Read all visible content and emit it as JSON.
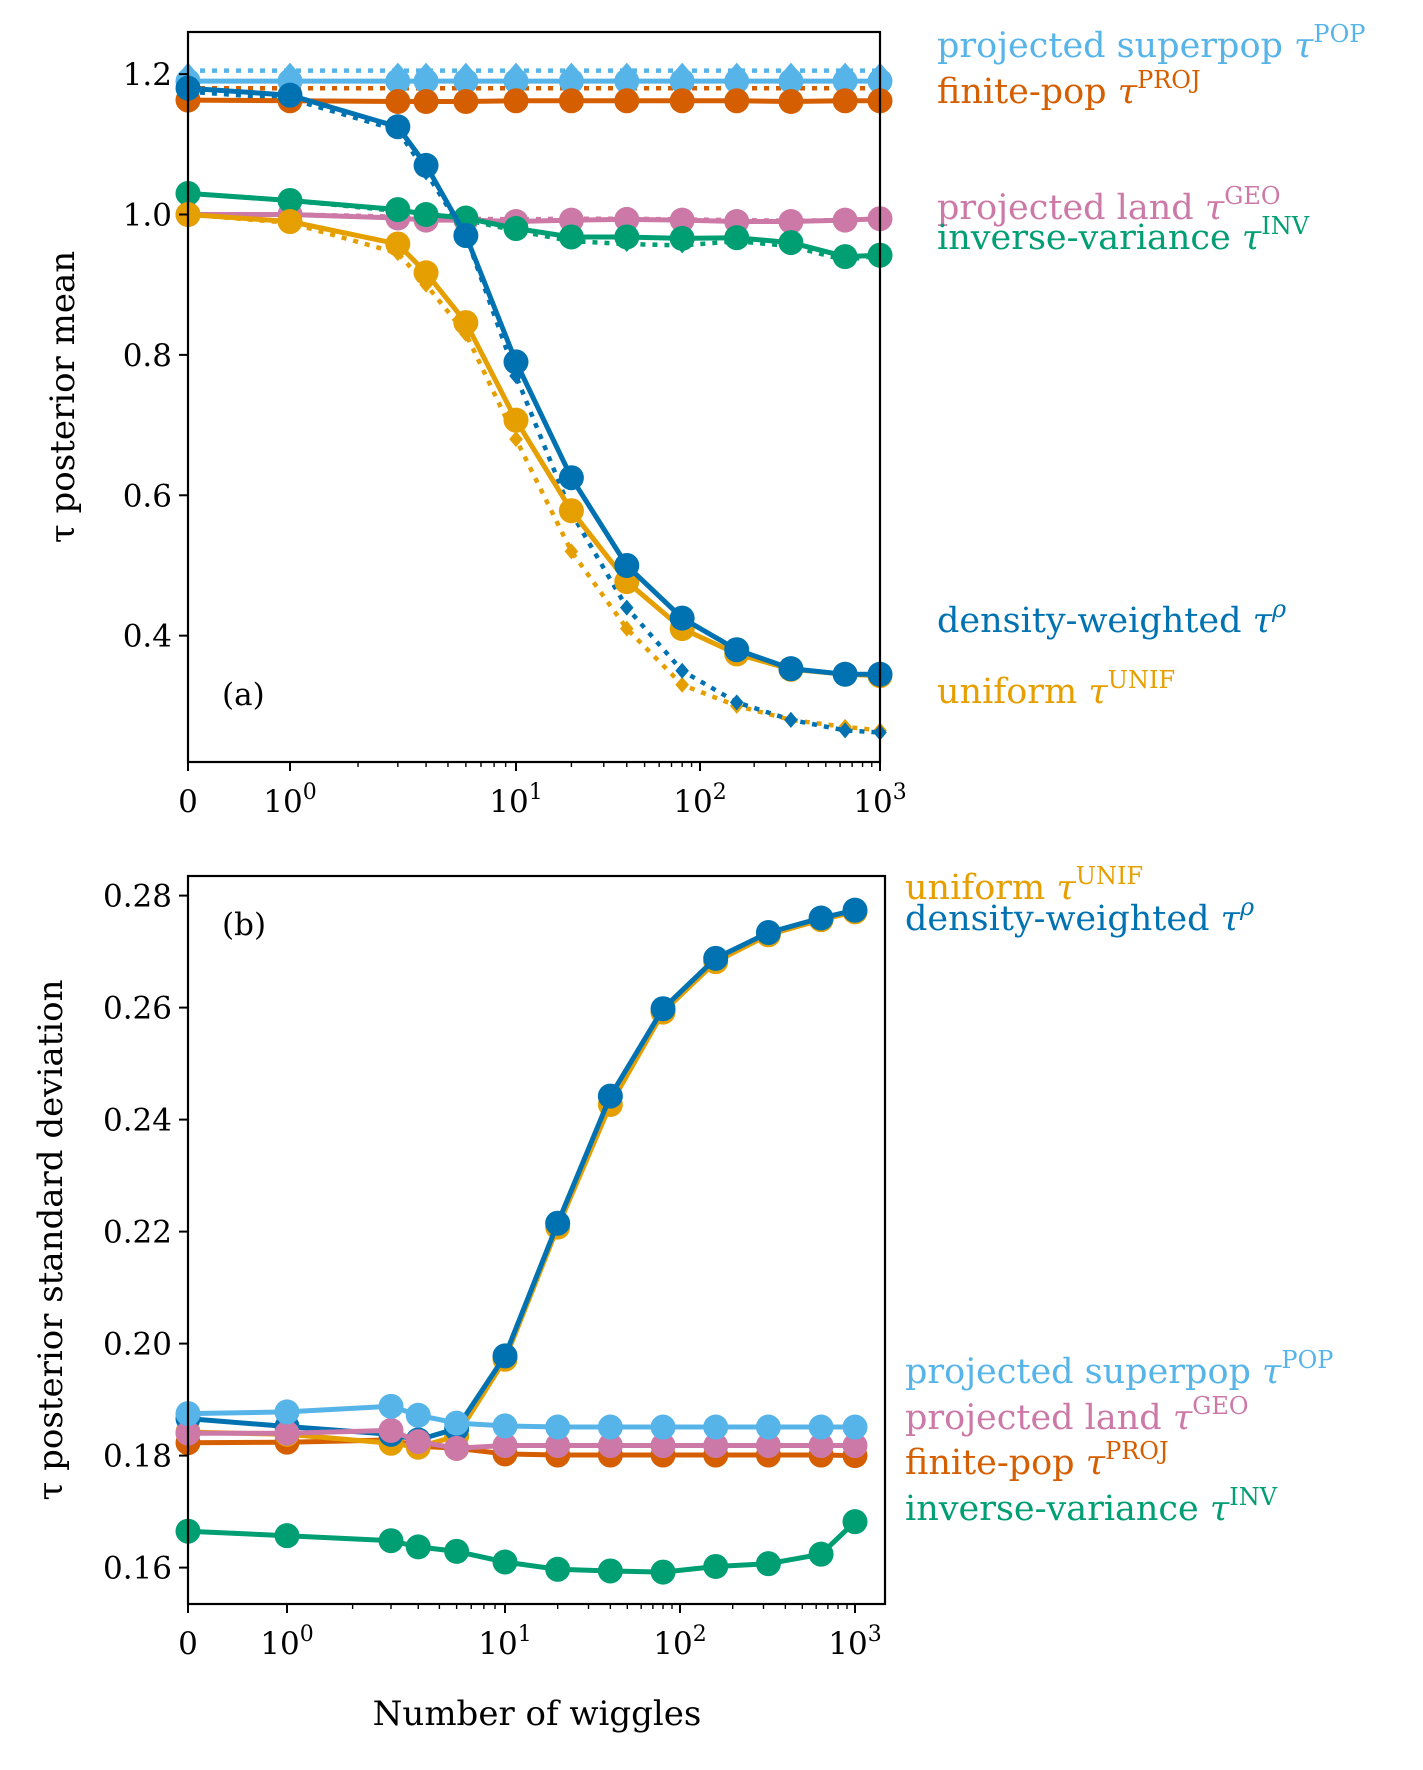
{
  "figure": {
    "xlabel": "Number of wiggles"
  },
  "colors": {
    "density": "#0072B2",
    "uniform": "#E69F00",
    "superpop": "#56B4E9",
    "finite": "#D55E00",
    "land": "#CC79A7",
    "invvar": "#009E73"
  },
  "chart_data": [
    {
      "type": "line",
      "panel_label": "(a)",
      "ylabel": "τ posterior mean",
      "xscale": "symlog",
      "x": [
        0,
        1,
        3,
        4,
        6,
        10,
        20,
        40,
        80,
        160,
        320,
        640,
        1000
      ],
      "xticks": [
        0,
        1,
        10,
        100,
        1000
      ],
      "xtick_labels": [
        {
          "base": "0",
          "exp": ""
        },
        {
          "base": "10",
          "exp": "0"
        },
        {
          "base": "10",
          "exp": "1"
        },
        {
          "base": "10",
          "exp": "2"
        },
        {
          "base": "10",
          "exp": "3"
        }
      ],
      "ylim": [
        0.22,
        1.26
      ],
      "yticks": [
        0.4,
        0.6,
        0.8,
        1.0,
        1.2
      ],
      "ytick_labels": [
        "0.4",
        "0.6",
        "0.8",
        "1.0",
        "1.2"
      ],
      "legend": "direct labels right of plot",
      "series": [
        {
          "name": "projected superpop",
          "sym": "τ",
          "sup": "POP",
          "color_key": "superpop",
          "style": "solid",
          "values": [
            1.19,
            1.19,
            1.19,
            1.19,
            1.19,
            1.19,
            1.19,
            1.19,
            1.19,
            1.19,
            1.19,
            1.19,
            1.19
          ]
        },
        {
          "color_key": "superpop",
          "style": "dotted",
          "values": [
            1.205,
            1.205,
            1.205,
            1.205,
            1.205,
            1.205,
            1.205,
            1.205,
            1.205,
            1.205,
            1.205,
            1.205,
            1.205
          ]
        },
        {
          "name": "finite-pop",
          "sym": "τ",
          "sup": "PROJ",
          "color_key": "finite",
          "style": "solid",
          "values": [
            1.163,
            1.162,
            1.161,
            1.161,
            1.161,
            1.162,
            1.162,
            1.162,
            1.162,
            1.162,
            1.161,
            1.162,
            1.162
          ]
        },
        {
          "color_key": "finite",
          "style": "dotted",
          "values": [
            1.18,
            1.18,
            1.18,
            1.18,
            1.18,
            1.18,
            1.18,
            1.18,
            1.18,
            1.18,
            1.18,
            1.18,
            1.18
          ]
        },
        {
          "name": "projected land",
          "sym": "τ",
          "sup": "GEO",
          "color_key": "land",
          "style": "solid",
          "values": [
            1.0,
            1.0,
            0.995,
            0.992,
            0.992,
            0.99,
            0.992,
            0.993,
            0.992,
            0.99,
            0.99,
            0.992,
            0.994
          ]
        },
        {
          "color_key": "land",
          "style": "dotted",
          "values": [
            1.0,
            1.0,
            0.997,
            0.995,
            0.994,
            0.993,
            0.994,
            0.994,
            0.993,
            0.992,
            0.991,
            0.992,
            0.994
          ]
        },
        {
          "name": "inverse-variance",
          "sym": "τ",
          "sup": "INV",
          "color_key": "invvar",
          "style": "solid",
          "values": [
            1.03,
            1.02,
            1.007,
            1.0,
            0.995,
            0.98,
            0.968,
            0.968,
            0.966,
            0.967,
            0.96,
            0.94,
            0.942
          ]
        },
        {
          "color_key": "invvar",
          "style": "dotted",
          "values": [
            1.03,
            1.02,
            1.005,
            0.998,
            0.992,
            0.977,
            0.962,
            0.958,
            0.956,
            0.962,
            0.955,
            0.935,
            0.942
          ]
        },
        {
          "name": "uniform",
          "sym": "τ",
          "sup": "UNIF",
          "color_key": "uniform",
          "style": "solid",
          "values": [
            1.0,
            0.99,
            0.958,
            0.917,
            0.846,
            0.707,
            0.578,
            0.477,
            0.41,
            0.374,
            0.352,
            0.345,
            0.343
          ]
        },
        {
          "color_key": "uniform",
          "style": "dotted",
          "values": [
            1.0,
            0.988,
            0.945,
            0.9,
            0.83,
            0.68,
            0.52,
            0.41,
            0.33,
            0.3,
            0.28,
            0.27,
            0.265
          ]
        },
        {
          "name": "density-weighted",
          "sym": "τ",
          "sup": "ρ",
          "sup_italic": true,
          "color_key": "density",
          "style": "solid",
          "values": [
            1.18,
            1.17,
            1.125,
            1.07,
            0.97,
            0.79,
            0.625,
            0.5,
            0.425,
            0.38,
            0.353,
            0.345,
            0.345
          ]
        },
        {
          "color_key": "density",
          "style": "dotted",
          "values": [
            1.175,
            1.165,
            1.12,
            1.06,
            0.97,
            0.77,
            0.575,
            0.44,
            0.35,
            0.305,
            0.28,
            0.265,
            0.262
          ]
        }
      ]
    },
    {
      "type": "line",
      "panel_label": "(b)",
      "ylabel": "τ posterior standard deviation",
      "xlabel": "Number of wiggles",
      "xscale": "symlog",
      "x": [
        0,
        1,
        3,
        4,
        6,
        10,
        20,
        40,
        80,
        160,
        320,
        640,
        1000
      ],
      "xticks": [
        0,
        1,
        10,
        100,
        1000
      ],
      "xtick_labels": [
        {
          "base": "0",
          "exp": ""
        },
        {
          "base": "10",
          "exp": "0"
        },
        {
          "base": "10",
          "exp": "1"
        },
        {
          "base": "10",
          "exp": "2"
        },
        {
          "base": "10",
          "exp": "3"
        }
      ],
      "ylim": [
        0.1535,
        0.2835
      ],
      "yticks": [
        0.16,
        0.18,
        0.2,
        0.22,
        0.24,
        0.26,
        0.28
      ],
      "ytick_labels": [
        "0.16",
        "0.18",
        "0.20",
        "0.22",
        "0.24",
        "0.26",
        "0.28"
      ],
      "legend": "direct labels right of plot",
      "series": [
        {
          "name": "inverse-variance",
          "sym": "τ",
          "sup": "INV",
          "color_key": "invvar",
          "style": "solid",
          "values": [
            0.1665,
            0.1657,
            0.1648,
            0.1637,
            0.1629,
            0.161,
            0.1597,
            0.1594,
            0.1592,
            0.1602,
            0.1607,
            0.1624,
            0.1682
          ]
        },
        {
          "name": "finite-pop",
          "sym": "τ",
          "sup": "PROJ",
          "color_key": "finite",
          "style": "solid",
          "values": [
            0.1823,
            0.1824,
            0.1828,
            0.1817,
            0.1813,
            0.1803,
            0.1801,
            0.1801,
            0.1801,
            0.1801,
            0.1801,
            0.1801,
            0.18
          ]
        },
        {
          "name": "uniform",
          "sym": "τ",
          "sup": "UNIF",
          "color_key": "uniform",
          "style": "solid",
          "values": [
            0.1842,
            0.1838,
            0.1822,
            0.1815,
            0.1835,
            0.1972,
            0.2208,
            0.2427,
            0.2592,
            0.2682,
            0.273,
            0.2757,
            0.2771
          ]
        },
        {
          "name": "density-weighted",
          "sym": "τ",
          "sup": "ρ",
          "sup_italic": true,
          "color_key": "density",
          "style": "solid",
          "values": [
            0.1866,
            0.1852,
            0.1838,
            0.1828,
            0.1848,
            0.1978,
            0.2215,
            0.2442,
            0.2598,
            0.2688,
            0.2734,
            0.276,
            0.2774
          ]
        },
        {
          "name": "projected land",
          "sym": "τ",
          "sup": "GEO",
          "color_key": "land",
          "style": "solid",
          "values": [
            0.184,
            0.184,
            0.1845,
            0.1825,
            0.1813,
            0.1818,
            0.1818,
            0.1818,
            0.1818,
            0.1818,
            0.1818,
            0.1818,
            0.1818
          ]
        },
        {
          "name": "projected superpop",
          "sym": "τ",
          "sup": "POP",
          "color_key": "superpop",
          "style": "solid",
          "values": [
            0.1875,
            0.1878,
            0.1888,
            0.1872,
            0.1858,
            0.1853,
            0.1851,
            0.1851,
            0.1851,
            0.1851,
            0.1851,
            0.1851,
            0.1851
          ]
        }
      ]
    }
  ]
}
